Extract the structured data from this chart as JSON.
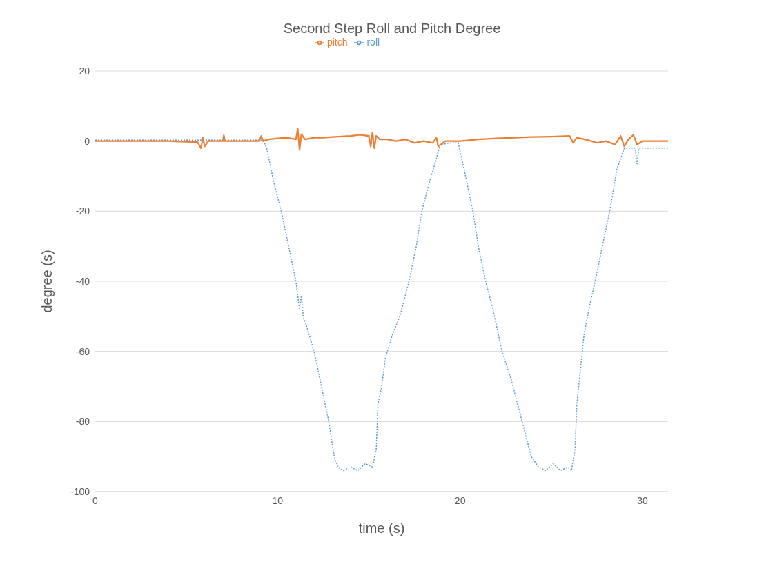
{
  "chart_data": {
    "type": "line",
    "title": "Second Step Roll and Pitch Degree",
    "xlabel": "time (s)",
    "ylabel": "degree (s)",
    "xlim": [
      0,
      31.4
    ],
    "xticks": [
      0,
      10,
      20,
      30
    ],
    "ylim": [
      -100,
      20
    ],
    "yticks": [
      -100,
      -80,
      -60,
      -40,
      -20,
      0,
      20
    ],
    "grid": "y",
    "legend": "top",
    "marker": "none",
    "series": [
      {
        "name": "roll",
        "color": "#5b9bd5",
        "line_style": "dotted",
        "x": [
          0,
          3,
          6,
          9.2,
          9.4,
          9.8,
          10.2,
          10.6,
          11.0,
          11.2,
          11.3,
          11.4,
          11.6,
          12.0,
          12.4,
          12.8,
          13.1,
          13.3,
          13.6,
          14.0,
          14.4,
          14.8,
          15.2,
          15.4,
          15.5,
          15.7,
          15.9,
          16.3,
          16.7,
          17.2,
          17.6,
          17.9,
          18.3,
          18.7,
          18.9,
          19.5,
          19.9,
          20.3,
          20.7,
          21.0,
          21.4,
          21.8,
          22.3,
          22.8,
          23.4,
          23.9,
          24.3,
          24.7,
          25.1,
          25.5,
          25.9,
          26.1,
          26.3,
          26.4,
          26.6,
          26.8,
          27.1,
          27.4,
          27.8,
          28.2,
          28.6,
          29.0,
          29.6,
          29.7,
          29.8,
          30.5,
          31.4
        ],
        "values": [
          0.3,
          0.3,
          0.3,
          0.3,
          -2,
          -12,
          -20,
          -30,
          -40,
          -48,
          -44,
          -50,
          -53,
          -60,
          -70,
          -80,
          -90,
          -93,
          -94,
          -93,
          -94,
          -92,
          -93,
          -88,
          -75,
          -70,
          -62,
          -55,
          -50,
          -40,
          -30,
          -20,
          -12,
          -5,
          -1,
          -0.5,
          -0.5,
          -10,
          -20,
          -30,
          -40,
          -48,
          -60,
          -68,
          -80,
          -90,
          -93,
          -94,
          -92,
          -94,
          -93,
          -94,
          -88,
          -75,
          -65,
          -55,
          -47,
          -40,
          -30,
          -20,
          -8,
          -2,
          -2,
          -6.5,
          -2,
          -2,
          -2
        ]
      },
      {
        "name": "pitch",
        "color": "#ed7d31",
        "line_style": "solid",
        "x": [
          0,
          2,
          4,
          5.6,
          5.8,
          5.9,
          6.0,
          6.2,
          7.0,
          7.05,
          7.1,
          8,
          9.0,
          9.1,
          9.2,
          9.5,
          10,
          10.5,
          11.0,
          11.1,
          11.2,
          11.3,
          11.5,
          12,
          12.5,
          13,
          14,
          14.5,
          15,
          15.1,
          15.2,
          15.3,
          15.4,
          15.6,
          16,
          16.5,
          17,
          17.5,
          18,
          18.5,
          18.7,
          18.8,
          19.2,
          20,
          21,
          22,
          23,
          24,
          25,
          26,
          26.2,
          26.4,
          27,
          27.5,
          28,
          28.5,
          28.8,
          29.0,
          29.2,
          29.5,
          29.7,
          30,
          31.4
        ],
        "values": [
          0,
          0,
          0,
          -0.3,
          -2,
          1,
          -1.5,
          0,
          0,
          1.7,
          0,
          0,
          0,
          1.5,
          0,
          0.5,
          0.8,
          1,
          0.5,
          3.5,
          -2.5,
          2,
          0.5,
          1,
          1,
          1.2,
          1.5,
          1.8,
          1.5,
          -1.5,
          2.5,
          -2,
          1.5,
          0.5,
          0.5,
          0,
          0.5,
          -0.5,
          0,
          -0.5,
          1,
          -1.5,
          0,
          0,
          0.5,
          0.8,
          1,
          1.2,
          1.3,
          1.5,
          -0.5,
          1,
          0.3,
          -0.5,
          0,
          -1,
          1.5,
          -1.5,
          0.3,
          1.8,
          -1,
          0,
          0
        ]
      }
    ]
  }
}
